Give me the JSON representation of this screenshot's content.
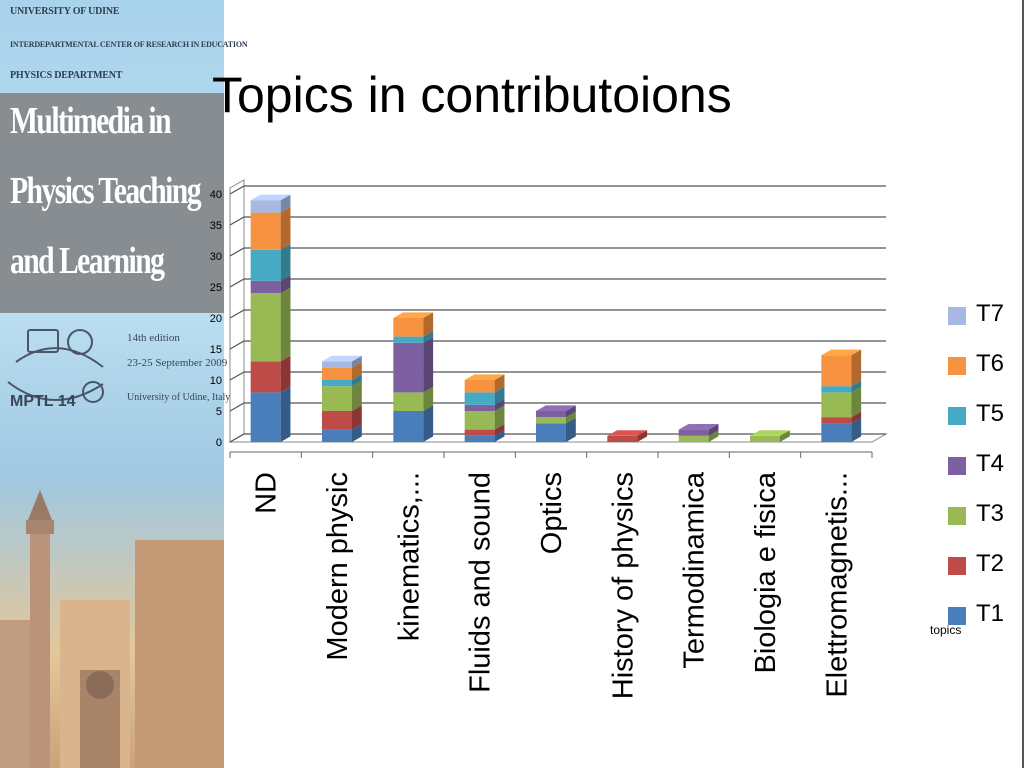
{
  "side_panel": {
    "header_lines": [
      "UNIVERSITY OF UDINE",
      "INTERDEPARTMENTAL CENTER OF RESEARCH IN EDUCATION",
      "PHYSICS DEPARTMENT"
    ],
    "conference_title_lines": [
      "Multimedia in",
      "Physics Teaching",
      "and Learning"
    ],
    "edition_lines": [
      "14th edition",
      "23-25 September 2009",
      "University of Udine, Italy"
    ],
    "logo_text": "MPTL 14"
  },
  "slide": {
    "title": "Topics in contributoions"
  },
  "chart_data": {
    "type": "bar",
    "stacked": true,
    "three_d": true,
    "categories": [
      "ND",
      "Modern physic",
      "kinematics,...",
      "Fluids and sound",
      "Optics",
      "History of physics",
      "Termodinamica",
      "Biologia e fisica",
      "Elettromagnetis..."
    ],
    "series": [
      {
        "name": "T1",
        "color": "#4a7ebb",
        "values": [
          8,
          2,
          5,
          1,
          3,
          0,
          0,
          0,
          3
        ]
      },
      {
        "name": "T2",
        "color": "#be4b48",
        "values": [
          5,
          3,
          0,
          1,
          0,
          1,
          0,
          0,
          1
        ]
      },
      {
        "name": "T3",
        "color": "#98b954",
        "values": [
          11,
          4,
          3,
          3,
          1,
          0,
          1,
          1,
          4
        ]
      },
      {
        "name": "T4",
        "color": "#7d60a0",
        "values": [
          2,
          0,
          8,
          1,
          1,
          0,
          1,
          0,
          0
        ]
      },
      {
        "name": "T5",
        "color": "#46aac5",
        "values": [
          5,
          1,
          1,
          2,
          0,
          0,
          0,
          0,
          1
        ]
      },
      {
        "name": "T6",
        "color": "#f69240",
        "values": [
          6,
          2,
          3,
          2,
          0,
          0,
          0,
          0,
          5
        ]
      },
      {
        "name": "T7",
        "color": "#a7b9e3",
        "values": [
          2,
          1,
          0,
          0,
          0,
          0,
          0,
          0,
          0
        ]
      }
    ],
    "ylim": [
      0,
      40
    ],
    "yticks": [
      0,
      5,
      10,
      15,
      20,
      25,
      30,
      35,
      40
    ],
    "grid": true,
    "legend_position": "right",
    "legend_title": "topics"
  }
}
